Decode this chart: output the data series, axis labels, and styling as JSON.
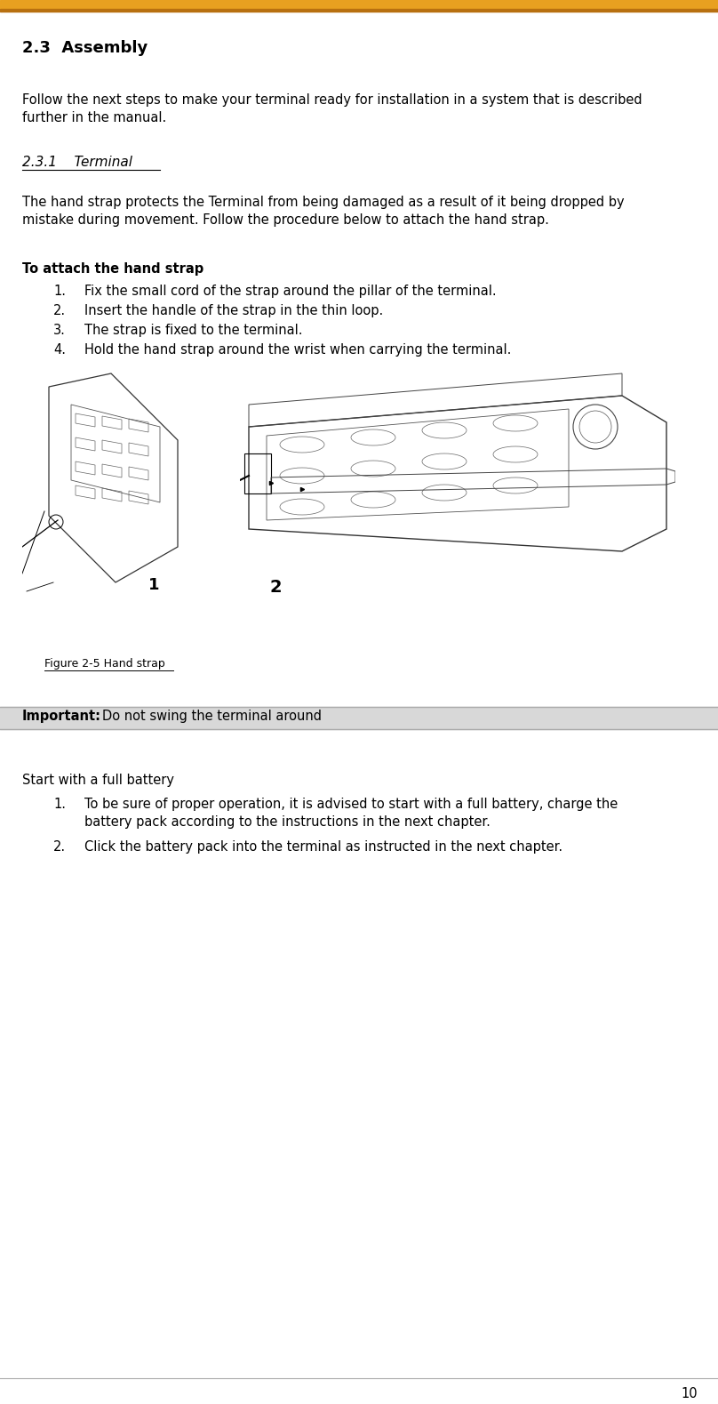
{
  "page_width": 8.08,
  "page_height": 15.79,
  "bg_color": "#ffffff",
  "top_bar_color": "#E8A020",
  "top_bar_thin_color": "#B87010",
  "section_heading": "2.3  Assembly",
  "body_text_1": "Follow the next steps to make your terminal ready for installation in a system that is described\nfurther in the manual.",
  "subsection_heading": "2.3.1    Terminal",
  "body_text_2": "The hand strap protects the Terminal from being damaged as a result of it being dropped by\nmistake during movement. Follow the procedure below to attach the hand strap.",
  "bold_heading": "To attach the hand strap",
  "steps": [
    "Fix the small cord of the strap around the pillar of the terminal.",
    "Insert the handle of the strap in the thin loop.",
    "The strap is fixed to the terminal.",
    "Hold the hand strap around the wrist when carrying the terminal."
  ],
  "figure_caption": "Figure 2-5 Hand strap",
  "important_label": "Important:",
  "important_text": "Do not swing the terminal around",
  "battery_heading": "Start with a full battery",
  "battery_step1_line1": "To be sure of proper operation, it is advised to start with a full battery, charge the",
  "battery_step1_line2": "battery pack according to the instructions in the next chapter.",
  "battery_step2": "Click the battery pack into the terminal as instructed in the next chapter.",
  "page_number": "10",
  "font_size_body": 10.5,
  "font_size_section": 13,
  "font_size_small": 9.0
}
